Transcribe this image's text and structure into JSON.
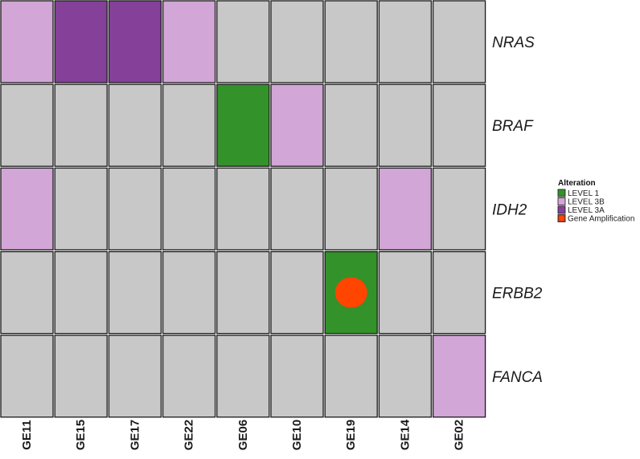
{
  "chart_data": {
    "type": "heatmap",
    "samples": [
      "GE11",
      "GE15",
      "GE17",
      "GE22",
      "GE06",
      "GE10",
      "GE19",
      "GE14",
      "GE02"
    ],
    "genes": [
      "NRAS",
      "BRAF",
      "IDH2",
      "ERBB2",
      "FANCA"
    ],
    "cells": [
      [
        "LEVEL 3B",
        "LEVEL 3A",
        "LEVEL 3A",
        "LEVEL 3B",
        null,
        null,
        null,
        null,
        null
      ],
      [
        null,
        null,
        null,
        null,
        "LEVEL 1",
        "LEVEL 3B",
        null,
        null,
        null
      ],
      [
        "LEVEL 3B",
        null,
        null,
        null,
        null,
        null,
        null,
        "LEVEL 3B",
        null
      ],
      [
        null,
        null,
        null,
        null,
        null,
        null,
        "LEVEL 1",
        null,
        null
      ],
      [
        null,
        null,
        null,
        null,
        null,
        null,
        null,
        null,
        "LEVEL 3B"
      ]
    ],
    "amplifications": [
      {
        "gene": "ERBB2",
        "sample": "GE19"
      }
    ],
    "colors": {
      "empty": "#c8c8c8",
      "LEVEL 1": "#33922a",
      "LEVEL 3B": "#d2a6d6",
      "LEVEL 3A": "#85409a",
      "Gene Amplification": "#ff4500"
    },
    "legend": {
      "title": "Alteration",
      "position": "right",
      "entries": [
        "LEVEL 1",
        "LEVEL 3B",
        "LEVEL 3A",
        "Gene Amplification"
      ]
    }
  }
}
